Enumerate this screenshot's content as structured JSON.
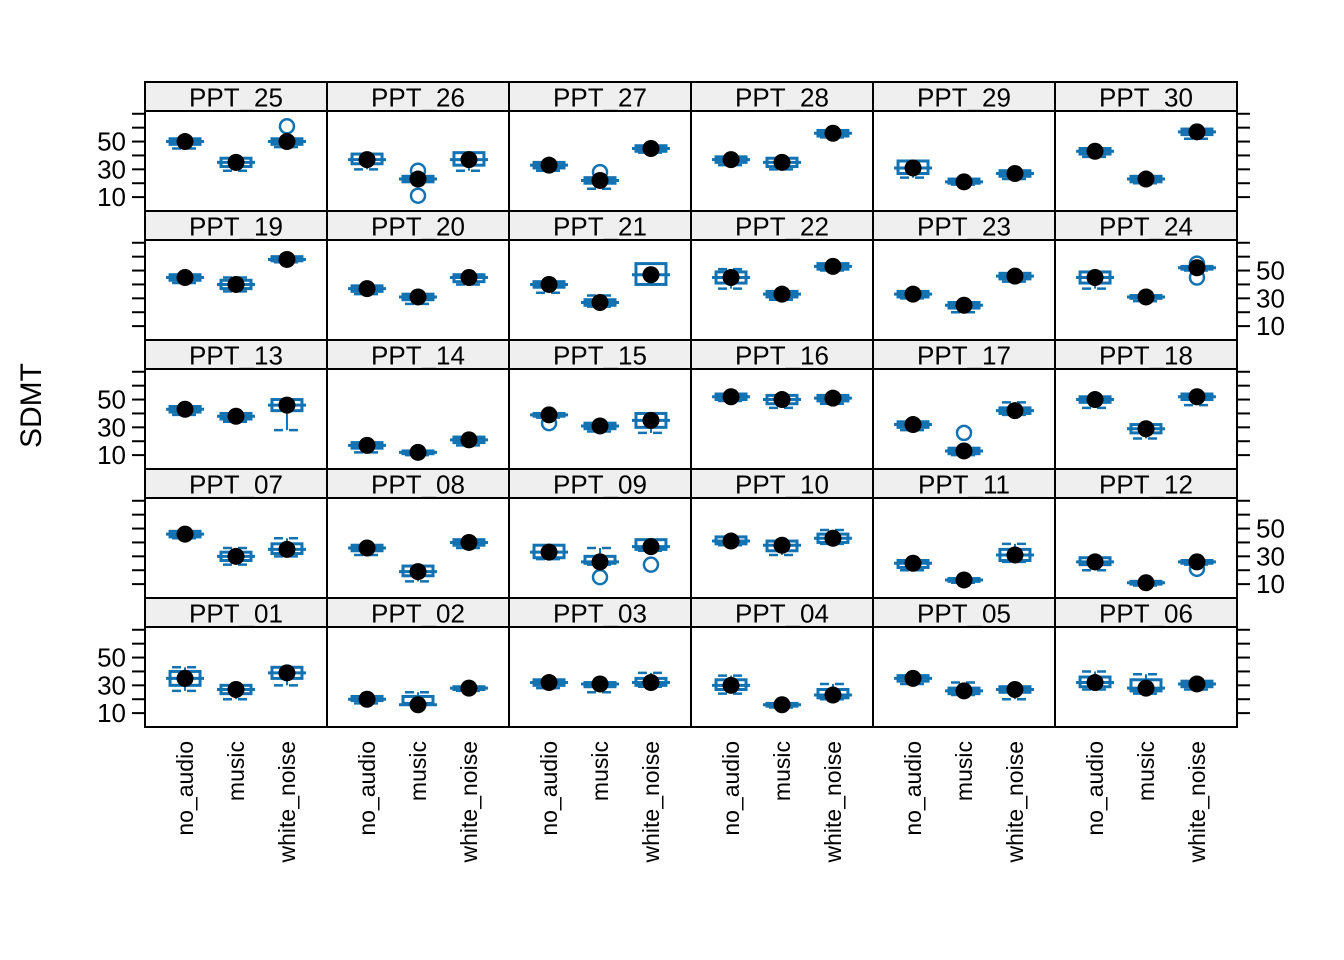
{
  "chart_data": {
    "type": "boxplot",
    "title": "",
    "ylabel": "SDMT",
    "xlabel": "",
    "categories": [
      "no_audio",
      "music",
      "white_noise"
    ],
    "ylim": [
      0,
      72
    ],
    "yticks": [
      10,
      20,
      30,
      40,
      50,
      60,
      70
    ],
    "ytick_labeled": [
      50,
      30,
      10
    ],
    "ytick_label_side_by_row": [
      "left",
      "right",
      "left",
      "right",
      "left"
    ],
    "grid": {
      "rows": 5,
      "cols": 6,
      "order": "row-major top-left"
    },
    "legend": "none",
    "group_format": [
      "mean",
      "q1",
      "q3",
      "whisker_lo",
      "whisker_hi",
      "outliers"
    ],
    "panels": [
      {
        "id": "PPT_25",
        "groups": [
          [
            50,
            48,
            52,
            45,
            52,
            []
          ],
          [
            35,
            32,
            38,
            29,
            38,
            []
          ],
          [
            50,
            48,
            52,
            46,
            52,
            [
              61
            ]
          ]
        ]
      },
      {
        "id": "PPT_26",
        "groups": [
          [
            37,
            34,
            41,
            30,
            41,
            []
          ],
          [
            23,
            21,
            25,
            21,
            25,
            [
              29,
              11
            ]
          ],
          [
            37,
            33,
            42,
            29,
            42,
            []
          ]
        ]
      },
      {
        "id": "PPT_27",
        "groups": [
          [
            33,
            31,
            35,
            29,
            35,
            []
          ],
          [
            22,
            20,
            24,
            16,
            24,
            [
              28
            ]
          ],
          [
            45,
            43,
            47,
            42,
            47,
            []
          ]
        ]
      },
      {
        "id": "PPT_28",
        "groups": [
          [
            37,
            35,
            39,
            33,
            39,
            []
          ],
          [
            35,
            32,
            38,
            30,
            38,
            []
          ],
          [
            56,
            54,
            58,
            53,
            58,
            []
          ]
        ]
      },
      {
        "id": "PPT_29",
        "groups": [
          [
            31,
            27,
            36,
            24,
            36,
            []
          ],
          [
            21,
            20,
            23,
            19,
            23,
            []
          ],
          [
            27,
            25,
            29,
            23,
            29,
            []
          ]
        ]
      },
      {
        "id": "PPT_30",
        "groups": [
          [
            43,
            41,
            45,
            39,
            45,
            []
          ],
          [
            23,
            21,
            25,
            20,
            25,
            []
          ],
          [
            57,
            55,
            59,
            52,
            59,
            []
          ]
        ]
      },
      {
        "id": "PPT_19",
        "groups": [
          [
            45,
            43,
            47,
            41,
            47,
            []
          ],
          [
            40,
            37,
            43,
            35,
            45,
            []
          ],
          [
            58,
            57,
            60,
            56,
            60,
            []
          ]
        ]
      },
      {
        "id": "PPT_20",
        "groups": [
          [
            37,
            35,
            39,
            33,
            39,
            []
          ],
          [
            31,
            29,
            33,
            26,
            33,
            []
          ],
          [
            45,
            42,
            47,
            40,
            47,
            []
          ]
        ]
      },
      {
        "id": "PPT_21",
        "groups": [
          [
            40,
            38,
            42,
            34,
            42,
            []
          ],
          [
            27,
            25,
            29,
            24,
            32,
            []
          ],
          [
            47,
            40,
            55,
            40,
            55,
            []
          ]
        ]
      },
      {
        "id": "PPT_22",
        "groups": [
          [
            45,
            41,
            49,
            37,
            51,
            []
          ],
          [
            33,
            31,
            35,
            29,
            35,
            []
          ],
          [
            53,
            51,
            55,
            50,
            55,
            []
          ]
        ]
      },
      {
        "id": "PPT_23",
        "groups": [
          [
            33,
            31,
            35,
            30,
            35,
            []
          ],
          [
            25,
            23,
            27,
            20,
            27,
            []
          ],
          [
            46,
            44,
            48,
            42,
            48,
            []
          ]
        ]
      },
      {
        "id": "PPT_24",
        "groups": [
          [
            45,
            41,
            49,
            37,
            49,
            []
          ],
          [
            31,
            30,
            32,
            28,
            32,
            []
          ],
          [
            52,
            51,
            53,
            50,
            53,
            [
              55,
              45
            ]
          ]
        ]
      },
      {
        "id": "PPT_13",
        "groups": [
          [
            43,
            41,
            45,
            39,
            45,
            []
          ],
          [
            38,
            36,
            40,
            34,
            40,
            []
          ],
          [
            46,
            42,
            50,
            28,
            50,
            []
          ]
        ]
      },
      {
        "id": "PPT_14",
        "groups": [
          [
            17,
            15,
            19,
            12,
            19,
            []
          ],
          [
            12,
            11,
            13,
            10,
            13,
            []
          ],
          [
            21,
            19,
            23,
            17,
            23,
            []
          ]
        ]
      },
      {
        "id": "PPT_15",
        "groups": [
          [
            39,
            38,
            40,
            37,
            40,
            [
              33
            ]
          ],
          [
            31,
            29,
            33,
            27,
            33,
            []
          ],
          [
            35,
            30,
            40,
            26,
            40,
            []
          ]
        ]
      },
      {
        "id": "PPT_16",
        "groups": [
          [
            52,
            50,
            54,
            49,
            54,
            []
          ],
          [
            50,
            47,
            53,
            44,
            53,
            []
          ],
          [
            51,
            49,
            53,
            47,
            53,
            []
          ]
        ]
      },
      {
        "id": "PPT_17",
        "groups": [
          [
            32,
            30,
            34,
            28,
            34,
            []
          ],
          [
            13,
            11,
            15,
            10,
            15,
            [
              26
            ]
          ],
          [
            42,
            40,
            44,
            39,
            48,
            []
          ]
        ]
      },
      {
        "id": "PPT_18",
        "groups": [
          [
            50,
            48,
            52,
            44,
            52,
            []
          ],
          [
            29,
            26,
            32,
            22,
            32,
            []
          ],
          [
            52,
            50,
            54,
            46,
            54,
            []
          ]
        ]
      },
      {
        "id": "PPT_07",
        "groups": [
          [
            46,
            44,
            48,
            43,
            48,
            []
          ],
          [
            30,
            27,
            33,
            24,
            36,
            []
          ],
          [
            35,
            32,
            39,
            30,
            43,
            []
          ]
        ]
      },
      {
        "id": "PPT_08",
        "groups": [
          [
            36,
            34,
            38,
            31,
            38,
            []
          ],
          [
            19,
            16,
            23,
            12,
            23,
            []
          ],
          [
            40,
            38,
            42,
            36,
            42,
            []
          ]
        ]
      },
      {
        "id": "PPT_09",
        "groups": [
          [
            33,
            29,
            38,
            28,
            38,
            []
          ],
          [
            26,
            25,
            30,
            24,
            36,
            [
              15
            ]
          ],
          [
            37,
            35,
            42,
            34,
            42,
            [
              24
            ]
          ]
        ]
      },
      {
        "id": "PPT_10",
        "groups": [
          [
            41,
            39,
            44,
            38,
            44,
            []
          ],
          [
            38,
            34,
            41,
            31,
            41,
            []
          ],
          [
            43,
            40,
            46,
            39,
            49,
            []
          ]
        ]
      },
      {
        "id": "PPT_11",
        "groups": [
          [
            25,
            22,
            27,
            20,
            27,
            []
          ],
          [
            13,
            12,
            14,
            11,
            14,
            []
          ],
          [
            31,
            27,
            35,
            26,
            39,
            []
          ]
        ]
      },
      {
        "id": "PPT_12",
        "groups": [
          [
            26,
            24,
            29,
            20,
            29,
            []
          ],
          [
            11,
            10,
            12,
            9,
            12,
            []
          ],
          [
            26,
            25,
            27,
            24,
            27,
            [
              21
            ]
          ]
        ]
      },
      {
        "id": "PPT_01",
        "groups": [
          [
            35,
            30,
            40,
            26,
            43,
            []
          ],
          [
            27,
            24,
            30,
            20,
            30,
            []
          ],
          [
            39,
            35,
            43,
            30,
            43,
            []
          ]
        ]
      },
      {
        "id": "PPT_02",
        "groups": [
          [
            20,
            19,
            22,
            17,
            22,
            []
          ],
          [
            16,
            17,
            22,
            17,
            25,
            []
          ],
          [
            28,
            27,
            29,
            26,
            29,
            []
          ]
        ]
      },
      {
        "id": "PPT_03",
        "groups": [
          [
            32,
            30,
            34,
            28,
            34,
            []
          ],
          [
            31,
            29,
            32,
            25,
            32,
            []
          ],
          [
            32,
            30,
            35,
            29,
            39,
            []
          ]
        ]
      },
      {
        "id": "PPT_04",
        "groups": [
          [
            30,
            27,
            34,
            24,
            37,
            []
          ],
          [
            16,
            15,
            17,
            14,
            17,
            []
          ],
          [
            23,
            21,
            27,
            20,
            31,
            []
          ]
        ]
      },
      {
        "id": "PPT_05",
        "groups": [
          [
            35,
            33,
            37,
            31,
            37,
            []
          ],
          [
            26,
            24,
            28,
            23,
            32,
            []
          ],
          [
            27,
            25,
            29,
            20,
            29,
            []
          ]
        ]
      },
      {
        "id": "PPT_06",
        "groups": [
          [
            32,
            29,
            36,
            27,
            40,
            []
          ],
          [
            28,
            26,
            34,
            24,
            38,
            []
          ],
          [
            31,
            29,
            33,
            27,
            33,
            []
          ]
        ]
      }
    ],
    "style": {
      "box_color": "#1272b2",
      "mean_point_color": "#000000",
      "outlier_color": "#1272b2",
      "strip_bg": "#efefef",
      "panel_bg": "#ffffff",
      "border_color": "#000000",
      "text_color": "#000000"
    }
  }
}
